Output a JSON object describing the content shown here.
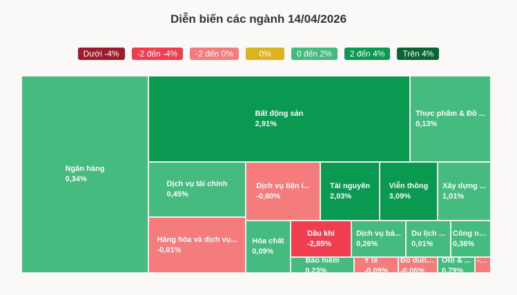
{
  "chart_data": {
    "type": "treemap",
    "title": "Diễn biến các ngành 14/04/2026",
    "legend": [
      {
        "label": "Dưới -4%",
        "color": "#9e1b2b"
      },
      {
        "label": "-2 đến -4%",
        "color": "#ef3e50"
      },
      {
        "label": "-2 đến 0%",
        "color": "#f47c7c"
      },
      {
        "label": "0%",
        "color": "#dcb31f"
      },
      {
        "label": "0 đến 2%",
        "color": "#45bb7f"
      },
      {
        "label": "2 đến 4%",
        "color": "#0a9950"
      },
      {
        "label": "Trên 4%",
        "color": "#096634"
      }
    ],
    "sectors": [
      {
        "name": "Ngân hàng",
        "value": "0,34%",
        "color": "#45bb7f"
      },
      {
        "name": "Bất động sản",
        "value": "2,91%",
        "color": "#0a9950"
      },
      {
        "name": "Thực phẩm & Đồ ...",
        "value": "0,13%",
        "color": "#45bb7f"
      },
      {
        "name": "Dịch vụ tài chính",
        "value": "0,45%",
        "color": "#45bb7f"
      },
      {
        "name": "Dịch vụ tiện í...",
        "value": "-0,80%",
        "color": "#f47c7c"
      },
      {
        "name": "Tài nguyên",
        "value": "2,03%",
        "color": "#0a9950"
      },
      {
        "name": "Viễn thông",
        "value": "3,09%",
        "color": "#0a9950"
      },
      {
        "name": "Xây dựng ...",
        "value": "1,01%",
        "color": "#45bb7f"
      },
      {
        "name": "Hàng hóa và dịch vụ...",
        "value": "-0,01%",
        "color": "#f47c7c"
      },
      {
        "name": "Hóa chất",
        "value": "0,09%",
        "color": "#45bb7f"
      },
      {
        "name": "Dầu khí",
        "value": "-2,85%",
        "color": "#ef3e50"
      },
      {
        "name": "Dịch vụ bá...",
        "value": "0,26%",
        "color": "#45bb7f"
      },
      {
        "name": "Du lịch ...",
        "value": "0,01%",
        "color": "#45bb7f"
      },
      {
        "name": "Công ng...",
        "value": "0,36%",
        "color": "#45bb7f"
      },
      {
        "name": "Bảo hiểm",
        "value": "0,23%",
        "color": "#45bb7f"
      },
      {
        "name": "Y tế",
        "value": "-0,09%",
        "color": "#f47c7c"
      },
      {
        "name": "Đồ dùng...",
        "value": "-0,06%",
        "color": "#f47c7c"
      },
      {
        "name": "Ôtô & ...",
        "value": "0,79%",
        "color": "#45bb7f"
      },
      {
        "name": "",
        "value": "-0,88%",
        "color": "#f47c7c"
      }
    ]
  }
}
